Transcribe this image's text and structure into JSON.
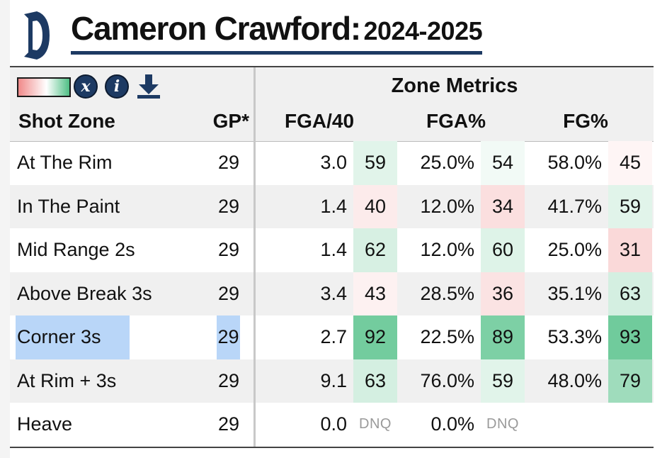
{
  "header": {
    "player_name": "Cameron Crawford:",
    "season": "2024-2025"
  },
  "controls": {
    "x_label": "x",
    "i_label": "i"
  },
  "table": {
    "group_title": "Zone Metrics",
    "columns": {
      "zone": "Shot Zone",
      "gp": "GP*",
      "fga40": "FGA/40",
      "fgapct": "FGA%",
      "fgpct": "FG%"
    },
    "rows": [
      {
        "zone": "At The Rim",
        "gp": "29",
        "fga40": "3.0",
        "fga40_pct": "59",
        "fgapct": "25.0%",
        "fgapct_pct": "54",
        "fgpct": "58.0%",
        "fgpct_pct": "45"
      },
      {
        "zone": "In The Paint",
        "gp": "29",
        "fga40": "1.4",
        "fga40_pct": "40",
        "fgapct": "12.0%",
        "fgapct_pct": "34",
        "fgpct": "41.7%",
        "fgpct_pct": "59"
      },
      {
        "zone": "Mid Range 2s",
        "gp": "29",
        "fga40": "1.4",
        "fga40_pct": "62",
        "fgapct": "12.0%",
        "fgapct_pct": "60",
        "fgpct": "25.0%",
        "fgpct_pct": "31"
      },
      {
        "zone": "Above Break 3s",
        "gp": "29",
        "fga40": "3.4",
        "fga40_pct": "43",
        "fgapct": "28.5%",
        "fgapct_pct": "36",
        "fgpct": "35.1%",
        "fgpct_pct": "63"
      },
      {
        "zone": "Corner 3s",
        "gp": "29",
        "fga40": "2.7",
        "fga40_pct": "92",
        "fgapct": "22.5%",
        "fgapct_pct": "89",
        "fgpct": "53.3%",
        "fgpct_pct": "93"
      },
      {
        "zone": "At Rim + 3s",
        "gp": "29",
        "fga40": "9.1",
        "fga40_pct": "63",
        "fgapct": "76.0%",
        "fgapct_pct": "59",
        "fgpct": "48.0%",
        "fgpct_pct": "79"
      },
      {
        "zone": "Heave",
        "gp": "29",
        "fga40": "0.0",
        "fga40_pct": "DNQ",
        "fgapct": "0.0%",
        "fgapct_pct": "DNQ",
        "fgpct": "",
        "fgpct_pct": ""
      }
    ]
  },
  "colors": {
    "brand_navy": "#1d3a63",
    "selection_blue": "#b9d6f8",
    "scale_low": "#f08a8a",
    "scale_high": "#4fbf85"
  }
}
